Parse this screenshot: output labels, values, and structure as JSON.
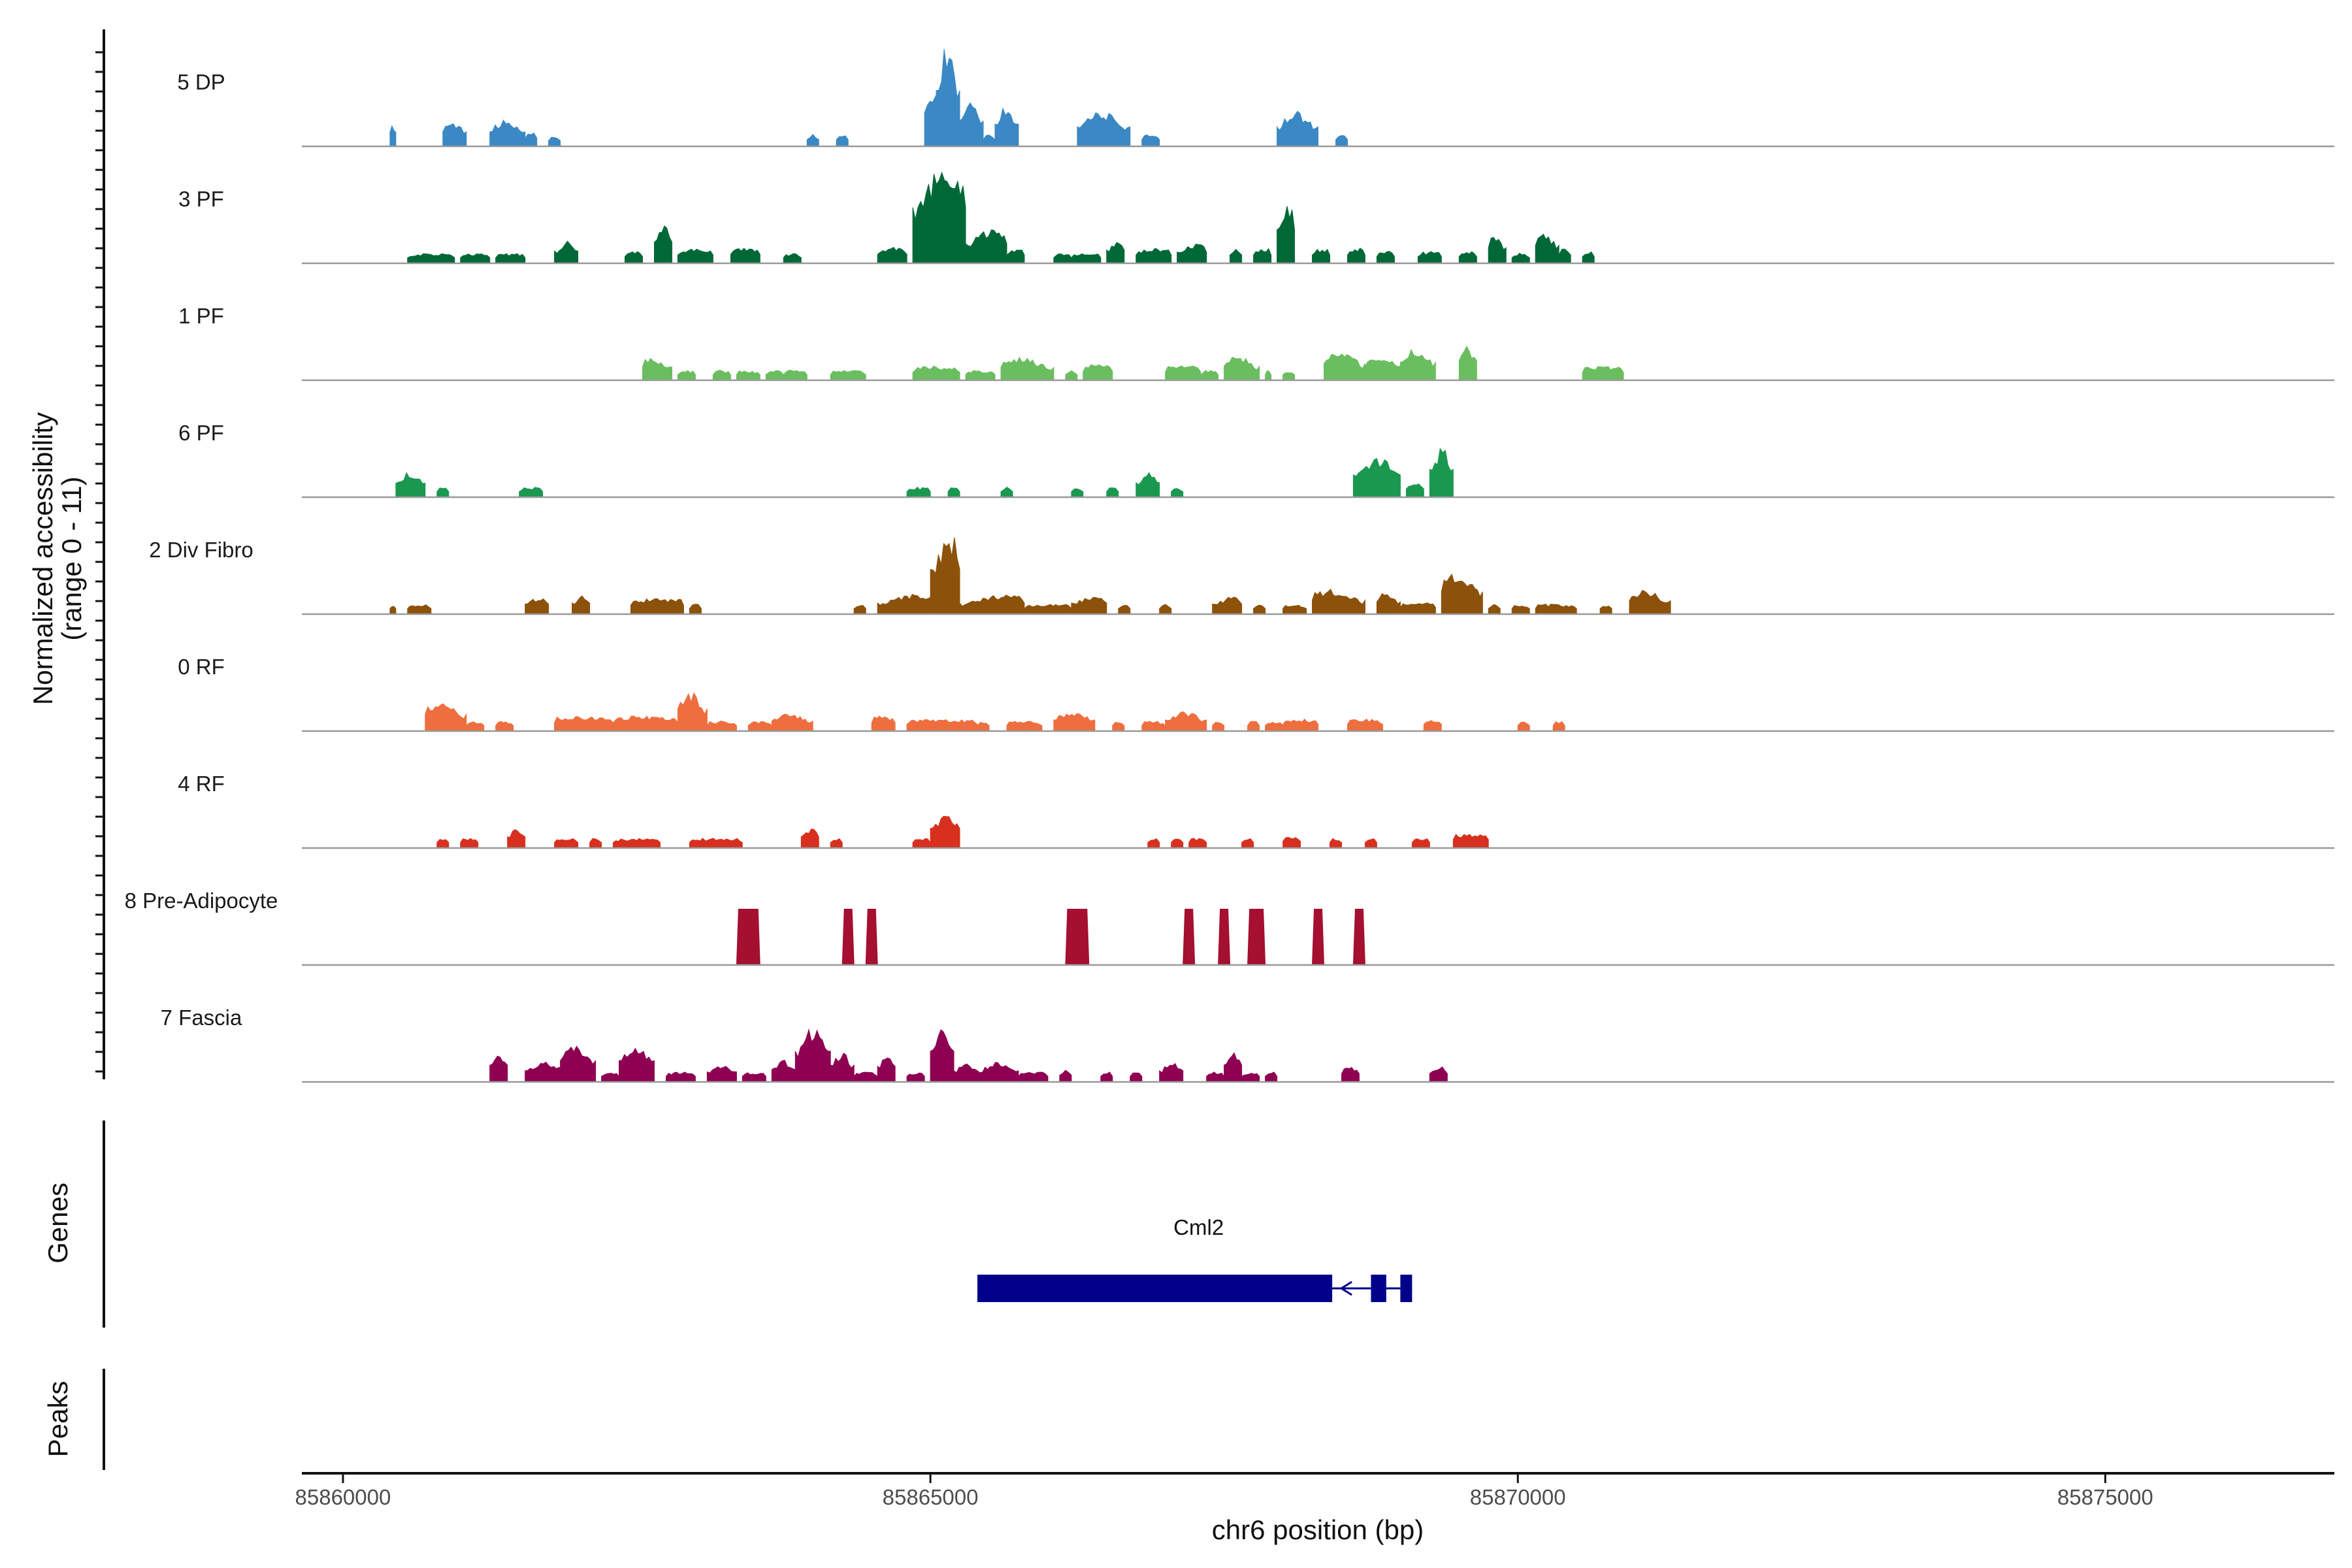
{
  "chart_data": {
    "type": "area",
    "title": "",
    "ylabel": "Normalized accessibility",
    "ylabel_range": "(range 0 - 11)",
    "xlabel": "chr6 position (bp)",
    "xlim": [
      85859650,
      85876950
    ],
    "ylim": [
      0,
      11
    ],
    "x_ticks": [
      85860000,
      85865000,
      85870000,
      85875000
    ],
    "x_tick_labels": [
      "85860000",
      "85865000",
      "85870000",
      "85875000"
    ],
    "gene_track_label": "Genes",
    "peak_track_label": "Peaks",
    "series": [
      {
        "name": "5 DP",
        "color": "#3A88C4",
        "regions": [
          [
            85860400,
            85860450,
            2.5
          ],
          [
            85860850,
            85861050,
            2.6
          ],
          [
            85861250,
            85861550,
            2.6
          ],
          [
            85861550,
            85861650,
            1.5
          ],
          [
            85861750,
            85861850,
            1.0
          ],
          [
            85863950,
            85864050,
            1.2
          ],
          [
            85864200,
            85864300,
            1.2
          ],
          [
            85864950,
            85865250,
            6.0
          ],
          [
            85865050,
            85865250,
            10.0
          ],
          [
            85865250,
            85865450,
            4.5
          ],
          [
            85865450,
            85865550,
            1.2
          ],
          [
            85865550,
            85865750,
            4.0
          ],
          [
            85866250,
            85866700,
            3.5
          ],
          [
            85866800,
            85866950,
            1.2
          ],
          [
            85867950,
            85868300,
            3.5
          ],
          [
            85868450,
            85868550,
            1.2
          ]
        ]
      },
      {
        "name": "3 PF",
        "color": "#006837",
        "regions": [
          [
            85860550,
            85860950,
            1.0
          ],
          [
            85861000,
            85861250,
            1.0
          ],
          [
            85861300,
            85861550,
            1.0
          ],
          [
            85861800,
            85862000,
            2.2
          ],
          [
            85862400,
            85862550,
            1.2
          ],
          [
            85862650,
            85862800,
            3.8
          ],
          [
            85862850,
            85863150,
            1.5
          ],
          [
            85863300,
            85863550,
            1.6
          ],
          [
            85863750,
            85863900,
            1.0
          ],
          [
            85864550,
            85864800,
            1.6
          ],
          [
            85864850,
            85865300,
            10.0
          ],
          [
            85865300,
            85865650,
            3.5
          ],
          [
            85865650,
            85865800,
            1.5
          ],
          [
            85866050,
            85866200,
            1.0
          ],
          [
            85866200,
            85866450,
            1.0
          ],
          [
            85866500,
            85866650,
            2.4
          ],
          [
            85866750,
            85867050,
            1.5
          ],
          [
            85867100,
            85867350,
            2.0
          ],
          [
            85867550,
            85867650,
            1.5
          ],
          [
            85867750,
            85867900,
            1.5
          ],
          [
            85867950,
            85868100,
            6.0
          ],
          [
            85868250,
            85868400,
            1.5
          ],
          [
            85868550,
            85868700,
            1.5
          ],
          [
            85868800,
            85868950,
            1.2
          ],
          [
            85869150,
            85869350,
            1.2
          ],
          [
            85869500,
            85869650,
            1.2
          ],
          [
            85869750,
            85869900,
            2.8
          ],
          [
            85869950,
            85870100,
            1.0
          ],
          [
            85870150,
            85870350,
            3.2
          ],
          [
            85870350,
            85870450,
            1.5
          ],
          [
            85870550,
            85870650,
            1.2
          ]
        ]
      },
      {
        "name": "1 PF",
        "color": "#6BBE60",
        "regions": [
          [
            85862550,
            85862800,
            2.4
          ],
          [
            85862850,
            85863000,
            1.0
          ],
          [
            85863150,
            85863300,
            1.0
          ],
          [
            85863350,
            85863550,
            1.0
          ],
          [
            85863600,
            85863750,
            1.0
          ],
          [
            85863750,
            85863950,
            1.0
          ],
          [
            85864150,
            85864450,
            1.0
          ],
          [
            85864850,
            85865250,
            1.4
          ],
          [
            85865300,
            85865550,
            1.0
          ],
          [
            85865600,
            85866050,
            2.3
          ],
          [
            85866150,
            85866250,
            1.0
          ],
          [
            85866300,
            85866550,
            1.6
          ],
          [
            85867000,
            85867300,
            1.5
          ],
          [
            85867300,
            85867450,
            1.0
          ],
          [
            85867500,
            85867800,
            2.5
          ],
          [
            85867850,
            85867900,
            1.0
          ],
          [
            85868000,
            85868100,
            1.0
          ],
          [
            85868350,
            85868700,
            3.0
          ],
          [
            85868700,
            85869000,
            2.5
          ],
          [
            85869000,
            85869300,
            3.2
          ],
          [
            85869500,
            85869650,
            3.5
          ],
          [
            85870550,
            85870900,
            1.4
          ]
        ]
      },
      {
        "name": "6 PF",
        "color": "#1B9850",
        "regions": [
          [
            85860450,
            85860700,
            2.5
          ],
          [
            85860800,
            85860900,
            1.0
          ],
          [
            85861500,
            85861700,
            1.0
          ],
          [
            85864800,
            85865000,
            1.0
          ],
          [
            85865150,
            85865250,
            1.0
          ],
          [
            85865600,
            85865700,
            1.0
          ],
          [
            85866200,
            85866300,
            1.0
          ],
          [
            85866500,
            85866600,
            1.0
          ],
          [
            85866750,
            85866950,
            2.6
          ],
          [
            85867050,
            85867150,
            1.0
          ],
          [
            85868600,
            85869000,
            4.0
          ],
          [
            85869050,
            85869200,
            1.5
          ],
          [
            85869250,
            85869450,
            5.0
          ]
        ]
      },
      {
        "name": "2 Div Fibro",
        "color": "#8C510A",
        "regions": [
          [
            85860400,
            85860450,
            1.0
          ],
          [
            85860550,
            85860750,
            1.0
          ],
          [
            85861550,
            85861750,
            1.8
          ],
          [
            85861950,
            85862100,
            2.0
          ],
          [
            85862450,
            85862900,
            1.6
          ],
          [
            85862950,
            85863050,
            1.0
          ],
          [
            85864350,
            85864450,
            1.0
          ],
          [
            85864550,
            85865050,
            2.0
          ],
          [
            85865000,
            85865250,
            8.0
          ],
          [
            85865250,
            85865800,
            2.0
          ],
          [
            85865800,
            85866200,
            1.0
          ],
          [
            85866200,
            85866500,
            2.0
          ],
          [
            85866600,
            85866700,
            1.0
          ],
          [
            85866950,
            85867050,
            1.0
          ],
          [
            85867400,
            85867650,
            1.8
          ],
          [
            85867750,
            85867850,
            1.0
          ],
          [
            85868000,
            85868200,
            1.0
          ],
          [
            85868250,
            85868700,
            2.5
          ],
          [
            85868800,
            85869000,
            2.2
          ],
          [
            85869000,
            85869300,
            1.2
          ],
          [
            85869350,
            85869700,
            4.0
          ],
          [
            85869750,
            85869850,
            1.0
          ],
          [
            85869950,
            85870100,
            1.0
          ],
          [
            85870150,
            85870500,
            1.0
          ],
          [
            85870700,
            85870800,
            1.0
          ],
          [
            85870950,
            85871300,
            2.4
          ]
        ]
      },
      {
        "name": "0 RF",
        "color": "#EE6E3F",
        "regions": [
          [
            85860700,
            85861050,
            3.0
          ],
          [
            85861050,
            85861200,
            1.0
          ],
          [
            85861300,
            85861450,
            1.0
          ],
          [
            85861800,
            85862300,
            1.5
          ],
          [
            85862300,
            85862850,
            1.5
          ],
          [
            85862850,
            85863100,
            4.0
          ],
          [
            85863100,
            85863350,
            1.0
          ],
          [
            85863450,
            85863650,
            1.0
          ],
          [
            85863650,
            85864000,
            1.8
          ],
          [
            85864500,
            85864700,
            1.5
          ],
          [
            85864800,
            85865400,
            1.2
          ],
          [
            85865400,
            85865500,
            1.0
          ],
          [
            85865650,
            85865950,
            1.0
          ],
          [
            85866050,
            85866400,
            2.0
          ],
          [
            85866550,
            85866650,
            1.0
          ],
          [
            85866800,
            85867000,
            1.0
          ],
          [
            85867000,
            85867350,
            2.0
          ],
          [
            85867400,
            85867500,
            1.0
          ],
          [
            85867700,
            85867800,
            1.0
          ],
          [
            85867850,
            85868000,
            1.0
          ],
          [
            85868000,
            85868300,
            1.2
          ],
          [
            85868550,
            85868850,
            1.2
          ],
          [
            85869200,
            85869350,
            1.2
          ],
          [
            85870000,
            85870100,
            1.0
          ],
          [
            85870300,
            85870400,
            1.0
          ]
        ]
      },
      {
        "name": "4 RF",
        "color": "#D7301F",
        "regions": [
          [
            85860800,
            85860900,
            1.0
          ],
          [
            85861000,
            85861150,
            1.0
          ],
          [
            85861400,
            85861550,
            2.0
          ],
          [
            85861800,
            85862000,
            1.0
          ],
          [
            85862100,
            85862200,
            1.0
          ],
          [
            85862300,
            85862700,
            1.0
          ],
          [
            85862950,
            85863400,
            1.0
          ],
          [
            85863900,
            85864050,
            2.0
          ],
          [
            85864150,
            85864250,
            1.0
          ],
          [
            85864850,
            85865000,
            1.0
          ],
          [
            85865000,
            85865250,
            3.5
          ],
          [
            85866850,
            85866950,
            1.0
          ],
          [
            85867050,
            85867150,
            1.0
          ],
          [
            85867200,
            85867350,
            1.0
          ],
          [
            85867650,
            85867750,
            1.0
          ],
          [
            85868000,
            85868150,
            1.2
          ],
          [
            85868400,
            85868500,
            1.0
          ],
          [
            85868700,
            85868800,
            1.0
          ],
          [
            85869100,
            85869250,
            1.0
          ],
          [
            85869450,
            85869750,
            1.5
          ]
        ]
      },
      {
        "name": "8 Pre-Adipocyte",
        "color": "#A50F30",
        "regions": [
          [
            85863350,
            85863550,
            5.5
          ],
          [
            85864250,
            85864350,
            5.5
          ],
          [
            85864450,
            85864550,
            5.5
          ],
          [
            85866150,
            85866350,
            5.5
          ],
          [
            85867150,
            85867250,
            5.5
          ],
          [
            85867450,
            85867550,
            5.5
          ],
          [
            85867700,
            85867850,
            5.5
          ],
          [
            85868250,
            85868350,
            5.5
          ],
          [
            85868600,
            85868700,
            5.5
          ]
        ]
      },
      {
        "name": "7 Fascia",
        "color": "#8E0152",
        "regions": [
          [
            85861250,
            85861400,
            3.0
          ],
          [
            85861550,
            85861950,
            2.0
          ],
          [
            85861850,
            85862150,
            3.8
          ],
          [
            85862200,
            85862350,
            1.0
          ],
          [
            85862350,
            85862650,
            3.8
          ],
          [
            85862750,
            85863000,
            1.0
          ],
          [
            85863100,
            85863350,
            1.8
          ],
          [
            85863400,
            85863600,
            1.0
          ],
          [
            85863650,
            85863850,
            2.2
          ],
          [
            85863850,
            85864150,
            5.5
          ],
          [
            85864150,
            85864350,
            3.0
          ],
          [
            85864350,
            85864550,
            1.0
          ],
          [
            85864550,
            85864700,
            2.8
          ],
          [
            85864800,
            85864950,
            1.0
          ],
          [
            85865000,
            85865200,
            5.5
          ],
          [
            85865200,
            85865400,
            2.0
          ],
          [
            85865400,
            85865750,
            2.0
          ],
          [
            85865750,
            85866000,
            1.0
          ],
          [
            85866100,
            85866200,
            1.2
          ],
          [
            85866450,
            85866550,
            1.0
          ],
          [
            85866700,
            85866800,
            1.0
          ],
          [
            85866950,
            85867150,
            2.0
          ],
          [
            85867350,
            85867500,
            1.0
          ],
          [
            85867500,
            85867650,
            3.0
          ],
          [
            85867650,
            85867800,
            1.0
          ],
          [
            85867850,
            85867950,
            1.0
          ],
          [
            85868500,
            85868650,
            1.5
          ],
          [
            85869250,
            85869400,
            1.5
          ]
        ]
      }
    ],
    "gene": {
      "name": "Cml2",
      "color": "#00008B",
      "strand": "-",
      "start": 85865400,
      "end": 85869100,
      "exons": [
        [
          85865400,
          85868420
        ],
        [
          85868750,
          85868880
        ],
        [
          85869000,
          85869100
        ]
      ]
    }
  }
}
